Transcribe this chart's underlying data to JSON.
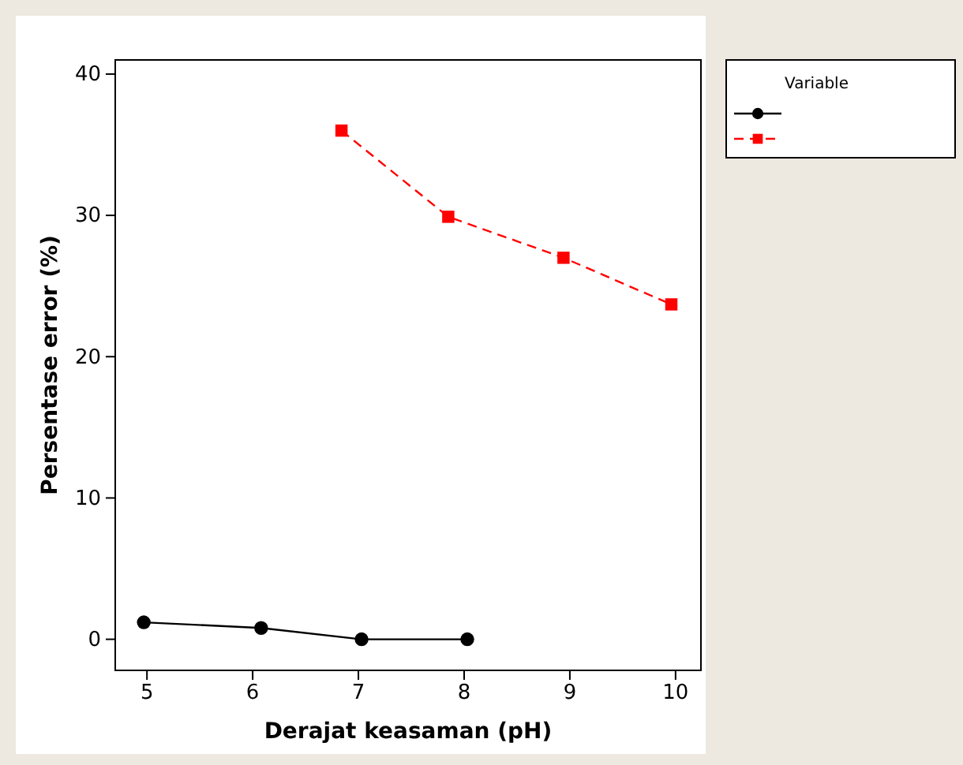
{
  "chart_data": {
    "type": "line",
    "xlabel": "Derajat keasaman (pH)",
    "ylabel": "Persentase error (%)",
    "legend_title": "Variable",
    "grid": false,
    "xlim": [
      4.7,
      10.24
    ],
    "xticks": [
      5,
      6,
      7,
      8,
      9,
      10
    ],
    "ylim": [
      -2.2,
      41
    ],
    "yticks": [
      0,
      10,
      20,
      30,
      40
    ],
    "series": [
      {
        "color": "#000000",
        "marker": "circle",
        "line_style": "solid",
        "x": [
          4.97,
          6.08,
          7.03,
          8.03
        ],
        "values": [
          1.2,
          0.8,
          0,
          0
        ]
      },
      {
        "color": "#ff0000",
        "marker": "square",
        "line_style": "dashed",
        "x": [
          6.84,
          7.85,
          8.94,
          9.96
        ],
        "values": [
          36.0,
          29.9,
          27.0,
          23.7
        ]
      }
    ]
  }
}
